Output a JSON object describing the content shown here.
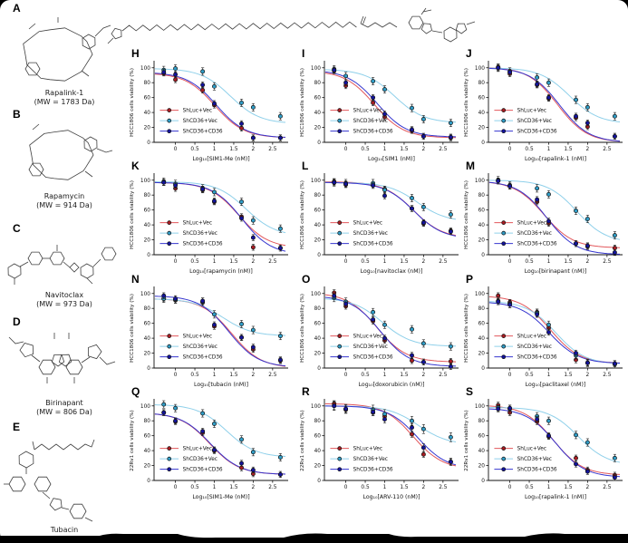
{
  "figure": {
    "molecules": [
      {
        "panel": "A",
        "name": "Rapalink-1",
        "mw": "(MW = 1783 Da)"
      },
      {
        "panel": "B",
        "name": "Rapamycin",
        "mw": "(MW = 914 Da)"
      },
      {
        "panel": "C",
        "name": "Navitoclax",
        "mw": "(MW = 973 Da)"
      },
      {
        "panel": "D",
        "name": "Birinapant",
        "mw": "(MW = 806 Da)"
      },
      {
        "panel": "E",
        "name": "Tubacin",
        "mw": ""
      }
    ],
    "legend_entries": [
      {
        "label": "ShLuc+Vec",
        "line_color": "#e2575b",
        "marker_color": "#a81c22"
      },
      {
        "label": "ShCD36+Vec",
        "line_color": "#8fd0ea",
        "marker_color": "#2f9cc6"
      },
      {
        "label": "ShCD36+CD36",
        "line_color": "#3535cf",
        "marker_color": "#13139b"
      }
    ],
    "axes": {
      "x_ticks": [
        0,
        0.5,
        1,
        1.5,
        2,
        2.5
      ],
      "y_ticks": [
        0,
        20,
        40,
        60,
        80,
        100
      ],
      "xlim": [
        -0.55,
        2.9
      ],
      "ylim": [
        0,
        107
      ]
    }
  },
  "chart_data": [
    {
      "panel": "H",
      "type": "scatter",
      "xlabel": "Log₁₀[SIM1-Me (nM)]",
      "ylabel": "HCC1806 cells viability (%)",
      "x": [
        -0.3,
        0,
        0.7,
        1,
        1.7,
        2,
        2.7
      ],
      "series": [
        {
          "name": "ShLuc+Vec",
          "values": [
            93,
            84,
            70,
            50,
            19,
            6,
            6
          ],
          "err": 4
        },
        {
          "name": "ShCD36+Vec",
          "values": [
            97,
            99,
            95,
            75,
            53,
            47,
            35
          ],
          "err": 5
        },
        {
          "name": "ShCD36+CD36",
          "values": [
            94,
            91,
            77,
            52,
            25,
            6,
            6
          ],
          "err": 4
        }
      ]
    },
    {
      "panel": "I",
      "type": "scatter",
      "xlabel": "Log₁₀[SIM1 (nM)]",
      "ylabel": "HCC1806 cells viability (%)",
      "x": [
        -0.3,
        0,
        0.7,
        1,
        1.7,
        2,
        2.7
      ],
      "series": [
        {
          "name": "ShLuc+Vec",
          "values": [
            96,
            76,
            53,
            34,
            16,
            8,
            6
          ],
          "err": 4
        },
        {
          "name": "ShCD36+Vec",
          "values": [
            98,
            89,
            82,
            71,
            46,
            31,
            26
          ],
          "err": 5
        },
        {
          "name": "ShCD36+CD36",
          "values": [
            97,
            80,
            60,
            38,
            17,
            8,
            7
          ],
          "err": 4
        }
      ]
    },
    {
      "panel": "J",
      "type": "scatter",
      "xlabel": "Log₁₀[rapalink-1 (nM)]",
      "ylabel": "HCC1806 cells viability (%)",
      "x": [
        -0.3,
        0,
        0.7,
        1,
        1.7,
        2,
        2.7
      ],
      "series": [
        {
          "name": "ShLuc+Vec",
          "values": [
            101,
            92,
            77,
            59,
            33,
            21,
            8
          ],
          "err": 4
        },
        {
          "name": "ShCD36+Vec",
          "values": [
            100,
            95,
            87,
            80,
            57,
            47,
            35
          ],
          "err": 5
        },
        {
          "name": "ShCD36+CD36",
          "values": [
            100,
            94,
            78,
            60,
            35,
            26,
            8
          ],
          "err": 4
        }
      ]
    },
    {
      "panel": "K",
      "type": "scatter",
      "xlabel": "Log₁₀[rapamycin (nM)]",
      "ylabel": "HCC1806 cells viability (%)",
      "x": [
        -0.3,
        0,
        0.7,
        1,
        1.7,
        2,
        2.7
      ],
      "series": [
        {
          "name": "ShLuc+Vec",
          "values": [
            97,
            89,
            87,
            71,
            51,
            10,
            9
          ],
          "err": 4
        },
        {
          "name": "ShCD36+Vec",
          "values": [
            98,
            95,
            89,
            84,
            71,
            46,
            35
          ],
          "err": 5
        },
        {
          "name": "ShCD36+CD36",
          "values": [
            97,
            93,
            88,
            72,
            49,
            23,
            9
          ],
          "err": 4
        }
      ]
    },
    {
      "panel": "L",
      "type": "scatter",
      "xlabel": "Log₁₀[navitoclax (nM)]",
      "ylabel": "HCC1806 cells viability (%)",
      "x": [
        -0.3,
        0,
        0.7,
        1,
        1.7,
        2,
        2.7
      ],
      "series": [
        {
          "name": "ShLuc+Vec",
          "values": [
            98,
            94,
            93,
            88,
            62,
            42,
            32
          ],
          "err": 4
        },
        {
          "name": "ShCD36+Vec",
          "values": [
            97,
            96,
            96,
            87,
            76,
            64,
            54
          ],
          "err": 5
        },
        {
          "name": "ShCD36+CD36",
          "values": [
            97,
            95,
            93,
            79,
            62,
            43,
            31
          ],
          "err": 4
        }
      ]
    },
    {
      "panel": "M",
      "type": "scatter",
      "xlabel": "Log₁₀[birinapant (nM)]",
      "ylabel": "HCC1806 cells viability (%)",
      "x": [
        -0.3,
        0,
        0.7,
        1,
        1.7,
        2,
        2.7
      ],
      "series": [
        {
          "name": "ShLuc+Vec",
          "values": [
            99,
            92,
            71,
            42,
            15,
            11,
            9
          ],
          "err": 4
        },
        {
          "name": "ShCD36+Vec",
          "values": [
            100,
            93,
            89,
            81,
            59,
            48,
            26
          ],
          "err": 5
        },
        {
          "name": "ShCD36+CD36",
          "values": [
            99,
            92,
            74,
            45,
            15,
            12,
            3
          ],
          "err": 4
        }
      ]
    },
    {
      "panel": "N",
      "type": "scatter",
      "xlabel": "Log₁₀[tubacin (nM)]",
      "ylabel": "HCC1806 cells viability (%)",
      "x": [
        -0.3,
        0,
        0.7,
        1,
        1.7,
        2,
        2.7
      ],
      "series": [
        {
          "name": "ShLuc+Vec",
          "values": [
            93,
            91,
            88,
            56,
            41,
            25,
            10
          ],
          "err": 4
        },
        {
          "name": "ShCD36+Vec",
          "values": [
            93,
            92,
            89,
            72,
            59,
            51,
            43
          ],
          "err": 5
        },
        {
          "name": "ShCD36+CD36",
          "values": [
            97,
            93,
            90,
            58,
            41,
            28,
            11
          ],
          "err": 4
        }
      ]
    },
    {
      "panel": "O",
      "type": "scatter",
      "xlabel": "Log₁₀[doxorubicin (nM)]",
      "ylabel": "HCC1806 cells viability (%)",
      "x": [
        -0.3,
        0,
        0.7,
        1,
        1.7,
        2,
        2.7
      ],
      "series": [
        {
          "name": "ShLuc+Vec",
          "values": [
            101,
            83,
            63,
            37,
            10,
            8,
            9
          ],
          "err": 4
        },
        {
          "name": "ShCD36+Vec",
          "values": [
            94,
            89,
            75,
            58,
            52,
            33,
            29
          ],
          "err": 5
        },
        {
          "name": "ShCD36+CD36",
          "values": [
            97,
            86,
            65,
            40,
            17,
            8,
            2
          ],
          "err": 4
        }
      ]
    },
    {
      "panel": "P",
      "type": "scatter",
      "xlabel": "Log₁₀[paclitaxel (nM)]",
      "ylabel": "HCC1806 cells viability (%)",
      "x": [
        -0.3,
        0,
        0.7,
        1,
        1.7,
        2,
        2.7
      ],
      "series": [
        {
          "name": "ShLuc+Vec",
          "values": [
            97,
            88,
            75,
            54,
            11,
            7,
            6
          ],
          "err": 4
        },
        {
          "name": "ShCD36+Vec",
          "values": [
            90,
            86,
            74,
            58,
            17,
            7,
            5
          ],
          "err": 5
        },
        {
          "name": "ShCD36+CD36",
          "values": [
            89,
            85,
            72,
            48,
            20,
            7,
            6
          ],
          "err": 4
        }
      ]
    },
    {
      "panel": "Q",
      "type": "scatter",
      "xlabel": "Log₁₀[SIM1-Me (nM)]",
      "ylabel": "22Rv1 cells viability (%)",
      "x": [
        -0.3,
        0,
        0.7,
        1,
        1.7,
        2,
        2.7
      ],
      "series": [
        {
          "name": "ShLuc+Vec",
          "values": [
            91,
            79,
            64,
            40,
            17,
            9,
            8
          ],
          "err": 4
        },
        {
          "name": "ShCD36+Vec",
          "values": [
            102,
            97,
            90,
            76,
            55,
            38,
            31
          ],
          "err": 5
        },
        {
          "name": "ShCD36+CD36",
          "values": [
            91,
            80,
            66,
            41,
            23,
            14,
            8
          ],
          "err": 4
        }
      ]
    },
    {
      "panel": "R",
      "type": "scatter",
      "xlabel": "Log₁₀[ARV-110 (nM)]",
      "ylabel": "22Rv1 cells viability (%)",
      "x": [
        -0.3,
        0,
        0.7,
        1,
        1.7,
        2,
        2.7
      ],
      "series": [
        {
          "name": "ShLuc+Vec",
          "values": [
            103,
            95,
            91,
            86,
            62,
            35,
            25
          ],
          "err": 4
        },
        {
          "name": "ShCD36+Vec",
          "values": [
            100,
            96,
            95,
            89,
            80,
            69,
            58
          ],
          "err": 6
        },
        {
          "name": "ShCD36+CD36",
          "values": [
            100,
            96,
            92,
            82,
            71,
            44,
            25
          ],
          "err": 5
        }
      ]
    },
    {
      "panel": "S",
      "type": "scatter",
      "xlabel": "Log₁₀[rapalink-1 (nM)]",
      "ylabel": "22Rv1 cells viability (%)",
      "x": [
        -0.3,
        0,
        0.7,
        1,
        1.7,
        2,
        2.7
      ],
      "series": [
        {
          "name": "ShLuc+Vec",
          "values": [
            101,
            91,
            79,
            59,
            30,
            14,
            7
          ],
          "err": 4
        },
        {
          "name": "ShCD36+Vec",
          "values": [
            98,
            96,
            86,
            80,
            61,
            51,
            30
          ],
          "err": 5
        },
        {
          "name": "ShCD36+CD36",
          "values": [
            96,
            97,
            82,
            60,
            22,
            12,
            4
          ],
          "err": 4
        }
      ]
    }
  ]
}
